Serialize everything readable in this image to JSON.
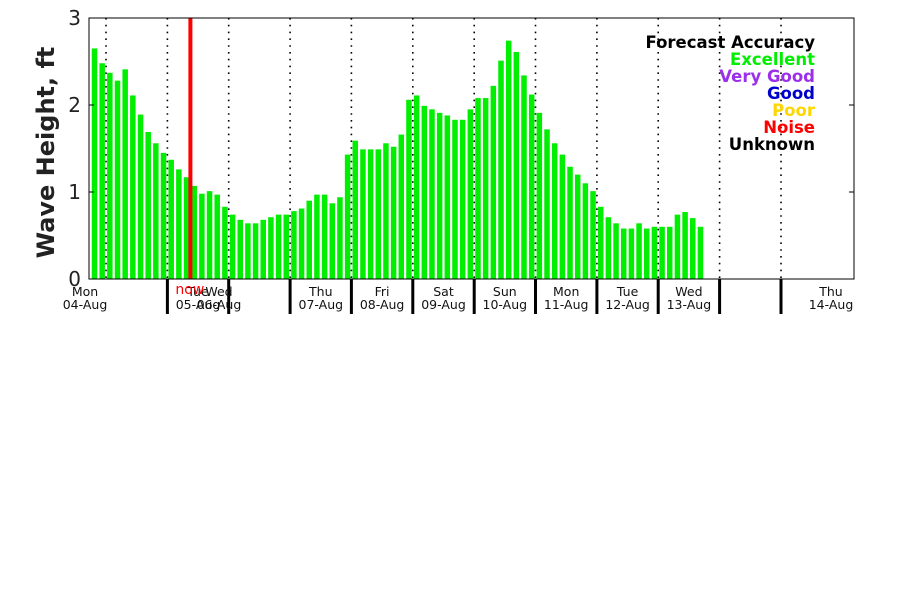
{
  "chart_data": {
    "type": "bar",
    "ylabel": "Wave Height, ft",
    "ylim": [
      0,
      3
    ],
    "yticks": [
      "0",
      "1",
      "2",
      "3"
    ],
    "bar_color": "#00ee00",
    "now_color": "#ff0000",
    "now_label": "now",
    "now_index": 12.5,
    "bars_per_day": 8,
    "days": [
      {
        "weekday": "Mon",
        "date": "04-Aug"
      },
      {
        "weekday": "Tue",
        "date": "05-Aug"
      },
      {
        "weekday": "Wed",
        "date": "06-Aug"
      },
      {
        "weekday": "Thu",
        "date": "07-Aug"
      },
      {
        "weekday": "Fri",
        "date": "08-Aug"
      },
      {
        "weekday": "Sat",
        "date": "09-Aug"
      },
      {
        "weekday": "Sun",
        "date": "10-Aug"
      },
      {
        "weekday": "Mon",
        "date": "11-Aug"
      },
      {
        "weekday": "Tue",
        "date": "12-Aug"
      },
      {
        "weekday": "Wed",
        "date": "13-Aug"
      },
      {
        "weekday": "Thu",
        "date": "14-Aug"
      }
    ],
    "values": [
      2.65,
      2.48,
      2.37,
      2.28,
      2.41,
      2.11,
      1.89,
      1.69,
      1.56,
      1.45,
      1.37,
      1.26,
      1.17,
      1.07,
      0.98,
      1.01,
      0.97,
      0.83,
      0.74,
      0.68,
      0.64,
      0.64,
      0.68,
      0.71,
      0.74,
      0.74,
      0.78,
      0.81,
      0.9,
      0.97,
      0.97,
      0.87,
      0.94,
      1.43,
      1.59,
      1.49,
      1.49,
      1.49,
      1.56,
      1.52,
      1.66,
      2.06,
      2.11,
      1.99,
      1.95,
      1.91,
      1.88,
      1.83,
      1.83,
      1.95,
      2.08,
      2.08,
      2.22,
      2.51,
      2.74,
      2.61,
      2.34,
      2.12,
      1.91,
      1.72,
      1.56,
      1.43,
      1.29,
      1.2,
      1.1,
      1.01,
      0.83,
      0.71,
      0.64,
      0.58,
      0.58,
      0.64,
      0.58,
      0.6,
      0.6,
      0.6,
      0.74,
      0.77,
      0.7,
      0.6
    ],
    "legend": {
      "title": {
        "text": "Forecast Accuracy",
        "color": "#000000"
      },
      "items": [
        {
          "text": "Excellent",
          "color": "#00ee00"
        },
        {
          "text": "Very Good",
          "color": "#9b30e8"
        },
        {
          "text": "Good",
          "color": "#0000cc"
        },
        {
          "text": "Poor",
          "color": "#ffd700"
        },
        {
          "text": "Noise",
          "color": "#ff0000"
        },
        {
          "text": "Unknown",
          "color": "#000000"
        }
      ]
    }
  }
}
